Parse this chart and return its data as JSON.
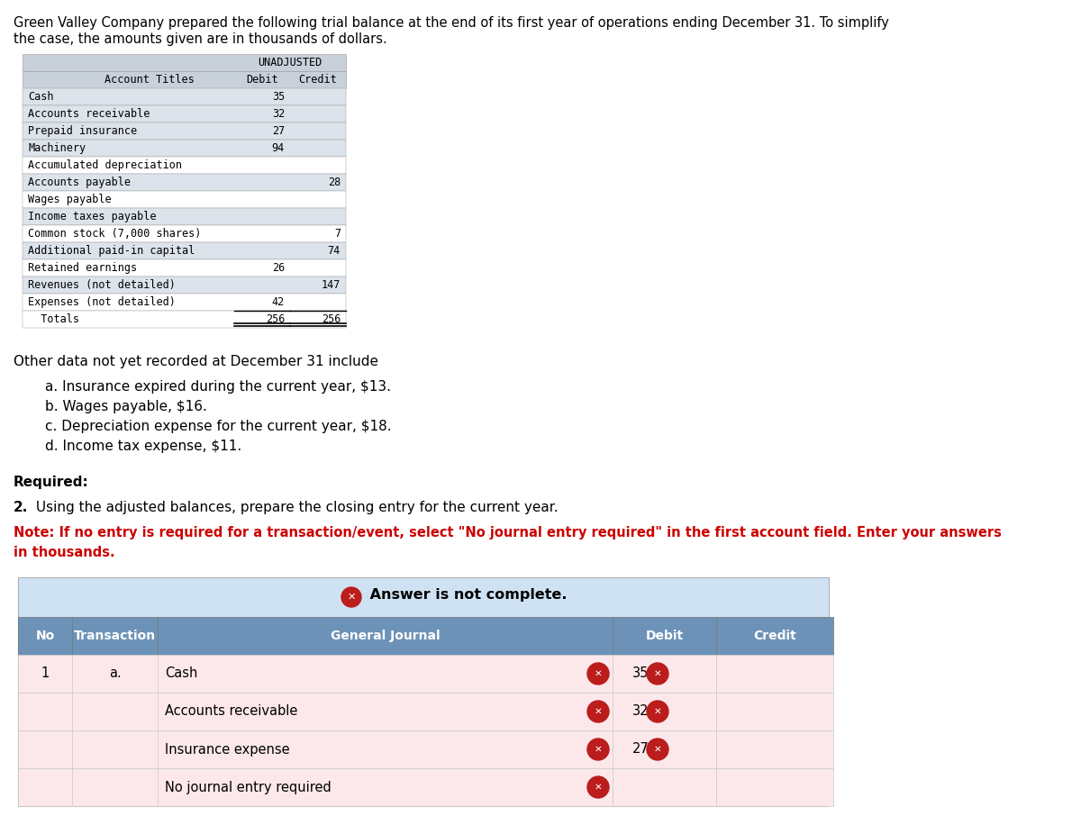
{
  "header_line1": "Green Valley Company prepared the following trial balance at the end of its first year of operations ending December 31. To simplify",
  "header_line2": "the case, the amounts given are in thousands of dollars.",
  "trial_balance": {
    "rows": [
      [
        "Cash",
        "35",
        ""
      ],
      [
        "Accounts receivable",
        "32",
        ""
      ],
      [
        "Prepaid insurance",
        "27",
        ""
      ],
      [
        "Machinery",
        "94",
        ""
      ],
      [
        "Accumulated depreciation",
        "",
        ""
      ],
      [
        "Accounts payable",
        "",
        "28"
      ],
      [
        "Wages payable",
        "",
        ""
      ],
      [
        "Income taxes payable",
        "",
        ""
      ],
      [
        "Common stock (7,000 shares)",
        "",
        "7"
      ],
      [
        "Additional paid-in capital",
        "",
        "74"
      ],
      [
        "Retained earnings",
        "26",
        ""
      ],
      [
        "Revenues (not detailed)",
        "",
        "147"
      ],
      [
        "Expenses (not detailed)",
        "42",
        ""
      ],
      [
        "  Totals",
        "256",
        "256"
      ]
    ],
    "bg_colors": [
      "#dce3eb",
      "#dce3eb",
      "#dce3eb",
      "#dce3eb",
      "#ffffff",
      "#dce3eb",
      "#ffffff",
      "#dce3eb",
      "#ffffff",
      "#dce3eb",
      "#ffffff",
      "#dce3eb",
      "#ffffff",
      "#ffffff"
    ]
  },
  "other_data_title": "Other data not yet recorded at December 31 include",
  "other_data_items": [
    "a. Insurance expired during the current year, $13.",
    "b. Wages payable, $16.",
    "c. Depreciation expense for the current year, $18.",
    "d. Income tax expense, $11."
  ],
  "required_label": "Required:",
  "required_num": "2.",
  "required_text": " Using the adjusted balances, prepare the closing entry for the current year.",
  "note_text_1": "Note: If no entry is required for a transaction/event, select \"No journal entry required\" in the first account field. Enter your answers",
  "note_text_2": "in thousands.",
  "journal_headers": [
    "No",
    "Transaction",
    "General Journal",
    "Debit",
    "Credit"
  ],
  "journal_rows": [
    [
      "1",
      "a.",
      "Cash",
      "35",
      ""
    ],
    [
      "",
      "",
      "Accounts receivable",
      "32",
      ""
    ],
    [
      "",
      "",
      "Insurance expense",
      "27",
      ""
    ],
    [
      "",
      "",
      "No journal entry required",
      "",
      ""
    ]
  ],
  "table_banner_bg": "#cfe2f3",
  "header_bg": "#6d92b8",
  "row_bg_pink": "#fce8ea",
  "row_bg_white": "#ffffff",
  "tb_header_bg": "#c8d0da",
  "tb_row_alt": "#dce3eb",
  "tb_row_white": "#ffffff"
}
